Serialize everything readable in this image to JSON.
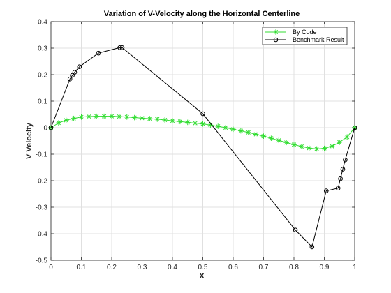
{
  "chart_data": {
    "type": "line",
    "title": "Variation of V-Velocity along the Horizontal Centerline",
    "xlabel": "X",
    "ylabel": "V Velocity",
    "xlim": [
      0,
      1
    ],
    "ylim": [
      -0.5,
      0.4
    ],
    "xticks": [
      "0",
      "0.1",
      "0.2",
      "0.3",
      "0.4",
      "0.5",
      "0.6",
      "0.7",
      "0.8",
      "0.9",
      "1"
    ],
    "yticks": [
      "0.4",
      "0.3",
      "0.2",
      "0.1",
      "0",
      "-0.1",
      "-0.2",
      "-0.3",
      "-0.4",
      "-0.5"
    ],
    "grid": true,
    "legend_position": "top-right",
    "series": [
      {
        "name": "By Code",
        "color": "#33dd33",
        "marker": "asterisk",
        "x": [
          0,
          0.025,
          0.05,
          0.075,
          0.1,
          0.125,
          0.15,
          0.175,
          0.2,
          0.225,
          0.25,
          0.275,
          0.3,
          0.325,
          0.35,
          0.375,
          0.4,
          0.425,
          0.45,
          0.475,
          0.5,
          0.525,
          0.55,
          0.575,
          0.6,
          0.625,
          0.65,
          0.675,
          0.7,
          0.725,
          0.75,
          0.775,
          0.8,
          0.825,
          0.85,
          0.875,
          0.9,
          0.925,
          0.95,
          0.975,
          1
        ],
        "y": [
          0,
          0.018,
          0.028,
          0.035,
          0.04,
          0.042,
          0.043,
          0.043,
          0.043,
          0.042,
          0.04,
          0.038,
          0.036,
          0.034,
          0.032,
          0.029,
          0.026,
          0.023,
          0.02,
          0.017,
          0.014,
          0.01,
          0.005,
          0,
          -0.006,
          -0.012,
          -0.018,
          -0.025,
          -0.032,
          -0.04,
          -0.048,
          -0.056,
          -0.064,
          -0.071,
          -0.077,
          -0.08,
          -0.078,
          -0.07,
          -0.055,
          -0.035,
          0
        ]
      },
      {
        "name": "Benchmark Result",
        "color": "#000000",
        "marker": "circle",
        "x": [
          0,
          0.0625,
          0.0703,
          0.0781,
          0.0938,
          0.1563,
          0.2266,
          0.2344,
          0.5,
          0.8047,
          0.8594,
          0.9063,
          0.9453,
          0.9531,
          0.9609,
          0.9688,
          1
        ],
        "y": [
          0,
          0.1836,
          0.1971,
          0.2092,
          0.2297,
          0.2812,
          0.3019,
          0.3019,
          0.0526,
          -0.3859,
          -0.4499,
          -0.2383,
          -0.2281,
          -0.1926,
          -0.1566,
          -0.1215,
          0
        ]
      }
    ]
  }
}
